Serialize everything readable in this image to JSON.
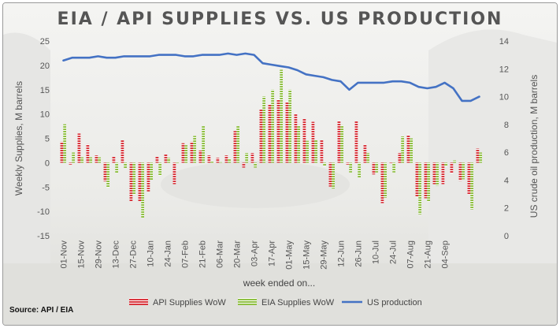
{
  "chart_data": {
    "type": "bar",
    "title": "EIA / API SUPPLIES VS. US PRODUCTION",
    "xlabel": "week ended on...",
    "ylabel": "Weekly Supplies, M barrels",
    "y2label": "US crude oil production, M barrels",
    "ylim": [
      -15,
      25
    ],
    "y2lim": [
      0,
      14
    ],
    "yticks": [
      "-15",
      "-10",
      "-5",
      "0",
      "5",
      "10",
      "15",
      "20",
      "25"
    ],
    "y2ticks": [
      "0",
      "2",
      "4",
      "6",
      "8",
      "10",
      "12",
      "14"
    ],
    "x_tick_labels": [
      "01-Nov",
      "15-Nov",
      "29-Nov",
      "13-Dec",
      "27-Dec",
      "10-Jan",
      "24-Jan",
      "07-Feb",
      "21-Feb",
      "06-Mar",
      "20-Mar",
      "03-Apr",
      "17-Apr",
      "01-May",
      "15-May",
      "29-May",
      "12-Jun",
      "26-Jun",
      "10-Jul",
      "24-Jul",
      "07-Aug",
      "21-Aug",
      "04-Sep"
    ],
    "series": [
      {
        "name": "API Supplies WoW",
        "color": "#d9363e",
        "values": [
          4.3,
          -0.4,
          6.0,
          3.8,
          1.5,
          -3.8,
          1.2,
          4.6,
          -7.9,
          -7.9,
          -5.9,
          1.2,
          1.7,
          -4.4,
          4.0,
          4.3,
          2.5,
          1.5,
          1.0,
          1.5,
          6.5,
          -1.0,
          2.0,
          11.0,
          12.0,
          13.0,
          12.5,
          10.0,
          9.0,
          8.4,
          4.6,
          -4.9,
          8.6,
          -0.4,
          8.5,
          3.7,
          -2.4,
          -8.3,
          -0.1,
          2.0,
          5.7,
          -7.0,
          -7.3,
          -4.4,
          -4.4,
          -2.2,
          -3.7,
          -6.5,
          2.9
        ]
      },
      {
        "name": "EIA Supplies WoW",
        "color": "#8fc043",
        "values": [
          7.9,
          2.1,
          1.1,
          1.1,
          1.1,
          -5.1,
          -2.1,
          -1.1,
          -6.6,
          -11.3,
          -3.5,
          -2.7,
          1.0,
          -0.1,
          3.6,
          5.5,
          7.5,
          0.3,
          0.1,
          0.9,
          7.5,
          2.0,
          -1.0,
          13.6,
          15.0,
          19.1,
          15.0,
          7.7,
          4.5,
          4.6,
          -0.7,
          -5.3,
          7.7,
          -2.0,
          -3.0,
          2.0,
          -2.0,
          -7.2,
          -2.0,
          5.4,
          5.0,
          -10.6,
          -8.0,
          -4.7,
          -0.7,
          0.5,
          -3.4,
          -9.6,
          2.1
        ]
      },
      {
        "name": "US production",
        "color": "#4472c4",
        "type": "line",
        "axis": "right",
        "values": [
          12.6,
          12.8,
          12.8,
          12.8,
          12.9,
          12.8,
          12.8,
          12.9,
          12.9,
          12.9,
          12.9,
          13.0,
          13.0,
          13.0,
          12.9,
          12.9,
          13.0,
          13.0,
          13.0,
          13.1,
          13.0,
          13.1,
          13.0,
          12.4,
          12.3,
          12.2,
          12.1,
          11.9,
          11.6,
          11.5,
          11.4,
          11.2,
          11.1,
          10.5,
          11.0,
          11.0,
          11.0,
          11.0,
          11.1,
          11.1,
          11.0,
          10.7,
          10.6,
          10.7,
          11.0,
          10.6,
          9.7,
          9.7,
          10.0
        ]
      }
    ],
    "legend_position": "bottom",
    "grid": false
  },
  "source": "Source: API / EIA"
}
